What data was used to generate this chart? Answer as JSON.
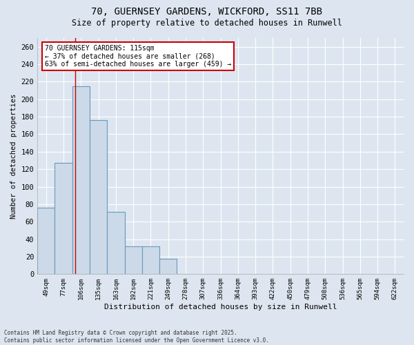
{
  "title_line1": "70, GUERNSEY GARDENS, WICKFORD, SS11 7BB",
  "title_line2": "Size of property relative to detached houses in Runwell",
  "xlabel": "Distribution of detached houses by size in Runwell",
  "ylabel": "Number of detached properties",
  "categories": [
    "49sqm",
    "77sqm",
    "106sqm",
    "135sqm",
    "163sqm",
    "192sqm",
    "221sqm",
    "249sqm",
    "278sqm",
    "307sqm",
    "336sqm",
    "364sqm",
    "393sqm",
    "422sqm",
    "450sqm",
    "479sqm",
    "508sqm",
    "536sqm",
    "565sqm",
    "594sqm",
    "622sqm"
  ],
  "values": [
    76,
    127,
    215,
    176,
    71,
    32,
    32,
    18,
    0,
    0,
    0,
    0,
    0,
    0,
    0,
    0,
    0,
    0,
    0,
    0,
    0
  ],
  "bar_color": "#ccd9e8",
  "bar_edge_color": "#6699bb",
  "bg_color": "#dde6f0",
  "grid_color": "#ffffff",
  "annotation_text": "70 GUERNSEY GARDENS: 115sqm\n← 37% of detached houses are smaller (268)\n63% of semi-detached houses are larger (459) →",
  "annotation_box_color": "#ffffff",
  "annotation_box_edge": "#cc0000",
  "vline_x": 1.67,
  "vline_color": "#cc0000",
  "ylim": [
    0,
    270
  ],
  "yticks": [
    0,
    20,
    40,
    60,
    80,
    100,
    120,
    140,
    160,
    180,
    200,
    220,
    240,
    260
  ],
  "footer": "Contains HM Land Registry data © Crown copyright and database right 2025.\nContains public sector information licensed under the Open Government Licence v3.0.",
  "figsize": [
    6.0,
    5.0
  ],
  "dpi": 100
}
